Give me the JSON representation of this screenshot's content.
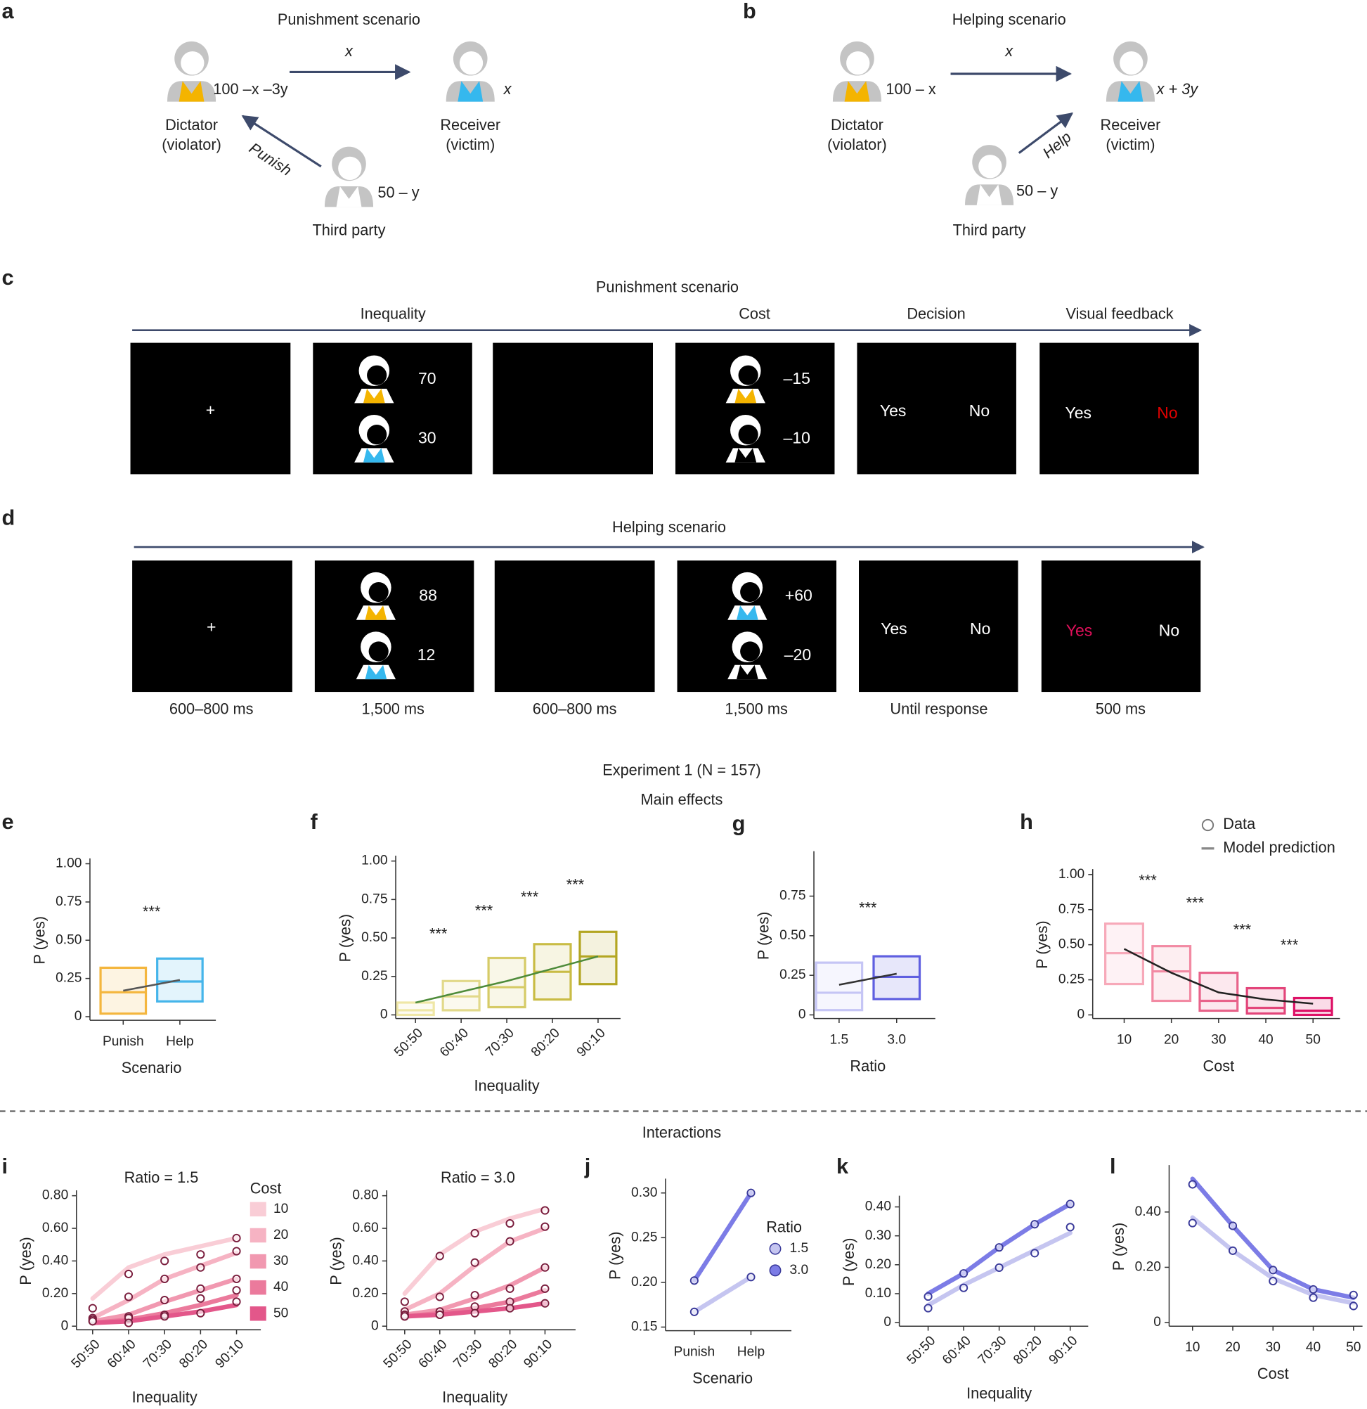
{
  "panel_labels": [
    "a",
    "b",
    "c",
    "d",
    "e",
    "f",
    "g",
    "h",
    "i",
    "j",
    "k",
    "l"
  ],
  "panel_a": {
    "title": "Punishment scenario",
    "dictator": "Dictator",
    "dictator_role": "(violator)",
    "receiver": "Receiver",
    "receiver_role": "(victim)",
    "third_party": "Third party",
    "dictator_payoff": "100 –x –3y",
    "transfer": "x",
    "receiver_payoff": "x",
    "third_payoff": "50 – y",
    "action": "Punish"
  },
  "panel_b": {
    "title": "Helping scenario",
    "dictator": "Dictator",
    "dictator_role": "(violator)",
    "receiver": "Receiver",
    "receiver_role": "(victim)",
    "third_party": "Third party",
    "dictator_payoff": "100 – x",
    "transfer": "x",
    "receiver_payoff": "x + 3y",
    "third_payoff": "50 – y",
    "action": "Help"
  },
  "panel_c": {
    "title": "Punishment scenario",
    "phases": [
      "Inequality",
      "Cost",
      "Decision",
      "Visual feedback"
    ],
    "fixation": "+",
    "inequality": [
      "70",
      "30"
    ],
    "cost": [
      "–15",
      "–10"
    ],
    "decision": [
      "Yes",
      "No"
    ],
    "feedback": [
      "Yes",
      "No"
    ]
  },
  "panel_d": {
    "title": "Helping scenario",
    "fixation": "+",
    "inequality": [
      "88",
      "12"
    ],
    "cost": [
      "+60",
      "–20"
    ],
    "decision": [
      "Yes",
      "No"
    ],
    "feedback": [
      "Yes",
      "No"
    ],
    "durations": [
      "600–800 ms",
      "1,500 ms",
      "600–800 ms",
      "1,500 ms",
      "Until response",
      "500 ms"
    ]
  },
  "experiment_title": "Experiment 1 (N = 157)",
  "main_effects": "Main effects",
  "interactions": "Interactions",
  "chart_data": [
    {
      "type": "box",
      "categories": [
        "Punish",
        "Help"
      ],
      "colors": [
        "#f4b63e",
        "#45b5ea"
      ],
      "q1": [
        0.02,
        0.1
      ],
      "median": [
        0.16,
        0.23
      ],
      "q3": [
        0.32,
        0.38
      ],
      "model": [
        0.17,
        0.24
      ],
      "model_color": "#555555",
      "ylim": [
        0,
        1
      ],
      "yticks": [
        0,
        0.25,
        {
          "value": 0.5,
          "label": "0.50"
        },
        0.75,
        {
          "value": 1,
          "label": "1.00"
        }
      ],
      "ylabel": "P (yes)",
      "xlabel": "Scenario",
      "annotations": [
        "***"
      ]
    },
    {
      "type": "box",
      "categories": [
        "50:50",
        "60:40",
        "70:30",
        "80:20",
        "90:10"
      ],
      "colors": [
        "#efe7a6",
        "#e2d98a",
        "#d6cb67",
        "#c9bc45",
        "#b3a622"
      ],
      "q1": [
        0,
        0.03,
        0.05,
        0.1,
        0.2
      ],
      "median": [
        0.03,
        0.12,
        0.18,
        0.28,
        0.38
      ],
      "q3": [
        0.08,
        0.22,
        0.37,
        0.46,
        0.54
      ],
      "model": [
        0.08,
        0.15,
        0.22,
        0.3,
        0.38
      ],
      "model_color": "#4e8b3a",
      "ylim": [
        0,
        1
      ],
      "yticks": [
        0,
        0.25,
        {
          "value": 0.5,
          "label": "0.50"
        },
        0.75,
        {
          "value": 1,
          "label": "1.00"
        }
      ],
      "ylabel": "P (yes)",
      "xlabel": "Inequality",
      "annotations": [
        "***",
        "***",
        "***",
        "***"
      ]
    },
    {
      "type": "box",
      "categories": [
        "1.5",
        "3.0"
      ],
      "colors": [
        "#c5c5f5",
        "#5f5fe0"
      ],
      "q1": [
        0.03,
        0.1
      ],
      "median": [
        0.14,
        0.24
      ],
      "q3": [
        0.33,
        0.37
      ],
      "model": [
        0.19,
        0.26
      ],
      "model_color": "#333333",
      "ylim": [
        0,
        1
      ],
      "yticks": [
        0,
        0.25,
        {
          "value": 0.5,
          "label": "0.50"
        },
        0.75
      ],
      "ylabel": "P (yes)",
      "xlabel": "Ratio",
      "annotations": [
        "***"
      ]
    },
    {
      "type": "box",
      "categories": [
        "10",
        "20",
        "30",
        "40",
        "50"
      ],
      "colors": [
        "#f7a9b9",
        "#f28aa3",
        "#e8638a",
        "#e3457a",
        "#dd1266"
      ],
      "q1": [
        0.22,
        0.1,
        0.03,
        0.01,
        0
      ],
      "median": [
        0.44,
        0.31,
        0.1,
        0.05,
        0.03
      ],
      "q3": [
        0.65,
        0.49,
        0.3,
        0.19,
        0.12
      ],
      "model": [
        0.47,
        0.3,
        0.16,
        0.11,
        0.08
      ],
      "model_color": "#222222",
      "ylim": [
        0,
        1
      ],
      "yticks": [
        0,
        0.25,
        {
          "value": 0.5,
          "label": "0.50"
        },
        0.75,
        {
          "value": 1,
          "label": "1.00"
        }
      ],
      "ylabel": "P (yes)",
      "xlabel": "Cost",
      "annotations": [
        "***",
        "***",
        "***",
        "***"
      ],
      "legend": [
        "Data",
        "Model prediction"
      ]
    },
    {
      "type": "line",
      "title": "Ratio = 1.5",
      "legend_title": "Cost",
      "categories": [
        "50:50",
        "60:40",
        "70:30",
        "80:20",
        "90:10"
      ],
      "marker_color": "#7a1d3d",
      "series": [
        {
          "name": "10",
          "color": "#f9cdd6",
          "values": [
            0.11,
            0.32,
            0.4,
            0.44,
            0.54
          ],
          "model": [
            0.17,
            0.36,
            0.44,
            0.49,
            0.54
          ]
        },
        {
          "name": "20",
          "color": "#f6b3c3",
          "values": [
            0.05,
            0.18,
            0.29,
            0.36,
            0.46
          ],
          "model": [
            0.05,
            0.16,
            0.29,
            0.37,
            0.45
          ]
        },
        {
          "name": "30",
          "color": "#f198b0",
          "values": [
            0.04,
            0.06,
            0.16,
            0.23,
            0.29
          ],
          "model": [
            0.03,
            0.07,
            0.15,
            0.22,
            0.29
          ]
        },
        {
          "name": "40",
          "color": "#eb7a9c",
          "values": [
            0.03,
            0.05,
            0.07,
            0.17,
            0.22
          ],
          "model": [
            0.02,
            0.04,
            0.08,
            0.13,
            0.19
          ]
        },
        {
          "name": "50",
          "color": "#e3578a",
          "values": [
            0.03,
            0.02,
            0.06,
            0.08,
            0.15
          ],
          "model": [
            0.02,
            0.03,
            0.06,
            0.09,
            0.13
          ]
        }
      ],
      "ylim": [
        0,
        0.8
      ],
      "yticks": [
        0,
        {
          "value": 0.2,
          "label": "0.20"
        },
        {
          "value": 0.4,
          "label": "0.40"
        },
        {
          "value": 0.6,
          "label": "0.60"
        },
        {
          "value": 0.8,
          "label": "0.80"
        }
      ],
      "ylabel": "P (yes)",
      "xlabel": "Inequality"
    },
    {
      "type": "line",
      "title": "Ratio = 3.0",
      "categories": [
        "50:50",
        "60:40",
        "70:30",
        "80:20",
        "90:10"
      ],
      "marker_color": "#7a1d3d",
      "series": [
        {
          "color": "#f9cdd6",
          "values": [
            0.15,
            0.43,
            0.57,
            0.63,
            0.71
          ],
          "model": [
            0.2,
            0.44,
            0.58,
            0.66,
            0.72
          ]
        },
        {
          "color": "#f6b3c3",
          "values": [
            0.09,
            0.18,
            0.39,
            0.52,
            0.61
          ],
          "model": [
            0.1,
            0.2,
            0.37,
            0.52,
            0.6
          ]
        },
        {
          "color": "#f198b0",
          "values": [
            0.07,
            0.09,
            0.19,
            0.23,
            0.36
          ],
          "model": [
            0.07,
            0.1,
            0.17,
            0.25,
            0.36
          ]
        },
        {
          "color": "#eb7a9c",
          "values": [
            0.06,
            0.07,
            0.12,
            0.15,
            0.23
          ],
          "model": [
            0.06,
            0.08,
            0.11,
            0.15,
            0.22
          ]
        },
        {
          "color": "#e3578a",
          "values": [
            0.06,
            0.07,
            0.08,
            0.11,
            0.14
          ],
          "model": [
            0.06,
            0.07,
            0.09,
            0.11,
            0.14
          ]
        }
      ],
      "ylim": [
        0,
        0.8
      ],
      "yticks": [
        0,
        {
          "value": 0.2,
          "label": "0.20"
        },
        {
          "value": 0.4,
          "label": "0.40"
        },
        {
          "value": 0.6,
          "label": "0.60"
        },
        {
          "value": 0.8,
          "label": "0.80"
        }
      ],
      "ylabel": "P (yes)",
      "xlabel": "Inequality"
    },
    {
      "type": "line",
      "legend_title": "Ratio",
      "categories": [
        "Punish",
        "Help"
      ],
      "marker_color": "#3a3a9a",
      "series": [
        {
          "name": "1.5",
          "color": "#c5c5f0",
          "values": [
            0.167,
            0.206
          ]
        },
        {
          "name": "3.0",
          "color": "#7c7ce6",
          "values": [
            0.202,
            0.3
          ]
        }
      ],
      "ylim": [
        0.15,
        0.31
      ],
      "yticks": [
        0.15,
        {
          "value": 0.2,
          "label": "0.20"
        },
        0.25,
        {
          "value": 0.3,
          "label": "0.30"
        }
      ],
      "ylabel": "P (yes)",
      "xlabel": "Scenario"
    },
    {
      "type": "line",
      "categories": [
        "50:50",
        "60:40",
        "70:30",
        "80:20",
        "90:10"
      ],
      "marker_color": "#3a3a9a",
      "series": [
        {
          "color": "#c5c5f0",
          "values": [
            0.05,
            0.12,
            0.19,
            0.24,
            0.33
          ],
          "model": [
            0.06,
            0.13,
            0.19,
            0.25,
            0.31
          ]
        },
        {
          "color": "#7c7ce6",
          "values": [
            0.09,
            0.17,
            0.26,
            0.34,
            0.41
          ],
          "model": [
            0.1,
            0.17,
            0.26,
            0.34,
            0.41
          ]
        }
      ],
      "ylim": [
        0,
        0.42
      ],
      "yticks": [
        0,
        {
          "value": 0.1,
          "label": "0.10"
        },
        {
          "value": 0.2,
          "label": "0.20"
        },
        {
          "value": 0.3,
          "label": "0.30"
        },
        {
          "value": 0.4,
          "label": "0.40"
        }
      ],
      "ylabel": "P (yes)",
      "xlabel": "Inequality"
    },
    {
      "type": "line",
      "categories": [
        "10",
        "20",
        "30",
        "40",
        "50"
      ],
      "marker_color": "#3a3a9a",
      "series": [
        {
          "color": "#c5c5f0",
          "values": [
            0.36,
            0.26,
            0.15,
            0.09,
            0.06
          ],
          "model": [
            0.38,
            0.26,
            0.16,
            0.1,
            0.07
          ]
        },
        {
          "color": "#7c7ce6",
          "values": [
            0.5,
            0.35,
            0.19,
            0.12,
            0.1
          ],
          "model": [
            0.52,
            0.35,
            0.19,
            0.12,
            0.09
          ]
        }
      ],
      "ylim": [
        0,
        0.55
      ],
      "yticks": [
        0,
        {
          "value": 0.2,
          "label": "0.20"
        },
        {
          "value": 0.4,
          "label": "0.40"
        }
      ],
      "ylabel": "P (yes)",
      "xlabel": "Cost"
    }
  ]
}
